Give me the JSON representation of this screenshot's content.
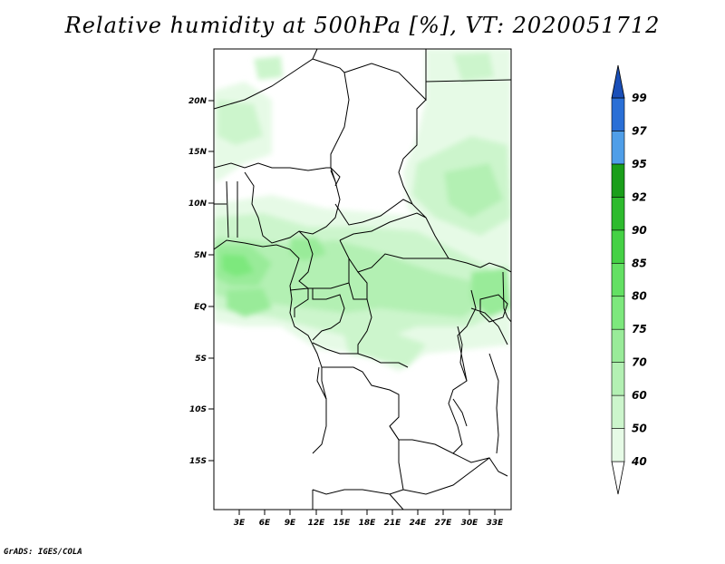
{
  "title": "Relative humidity at 500hPa [%], VT: 2020051712",
  "credit": "GrADS: IGES/COLA",
  "lat_labels": [
    "20N",
    "15N",
    "10N",
    "5N",
    "EQ",
    "5S",
    "10S",
    "15S"
  ],
  "lon_labels": [
    "3E",
    "6E",
    "9E",
    "12E",
    "15E",
    "18E",
    "21E",
    "24E",
    "27E",
    "30E",
    "33E"
  ],
  "colorbar": {
    "labels": [
      "40",
      "50",
      "60",
      "70",
      "75",
      "80",
      "85",
      "90",
      "92",
      "95",
      "97",
      "99"
    ],
    "colors": [
      "#ffffff",
      "#e6fae6",
      "#ccf5cc",
      "#b3f0b3",
      "#99eb99",
      "#7de87d",
      "#63e063",
      "#45d145",
      "#2ebb2e",
      "#1a9e1a",
      "#4f9ee8",
      "#2a6fd6",
      "#1a4fb8"
    ]
  }
}
